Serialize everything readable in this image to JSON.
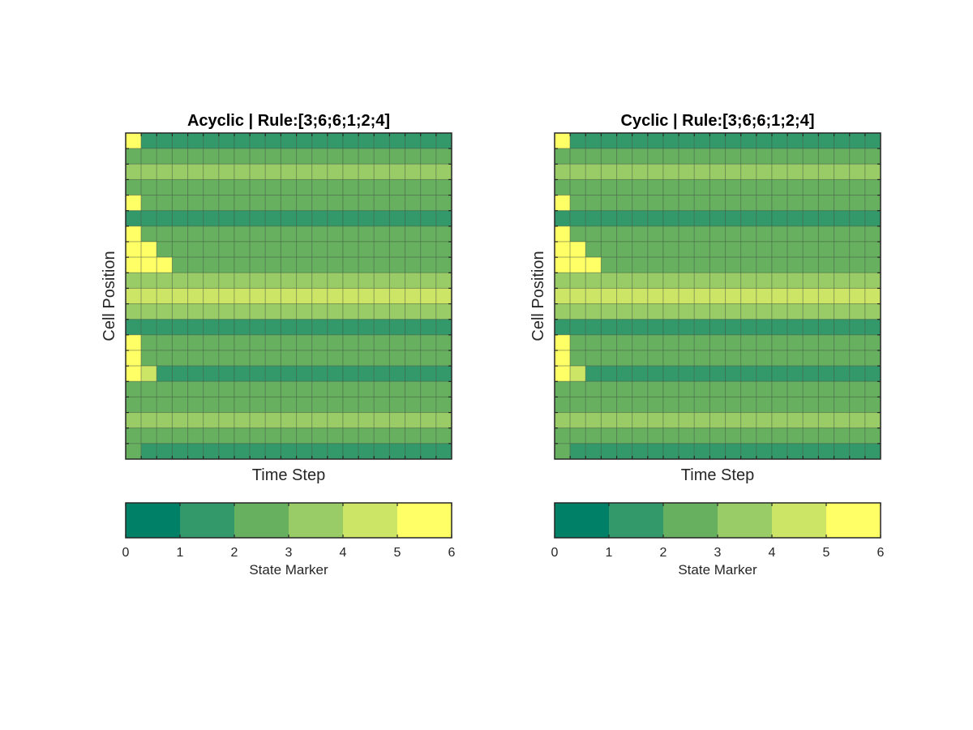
{
  "colors": {
    "palette": [
      "#008066",
      "#33996a",
      "#66b060",
      "#99cc66",
      "#cce566",
      "#ffff66"
    ],
    "grid": "#3a4a3a",
    "frame": "#262626",
    "background": "#ffffff"
  },
  "chart_data": [
    {
      "type": "heatmap",
      "title": "Acyclic | Rule:[3;6;6;1;2;4]",
      "xlabel": "Time Step",
      "ylabel": "Cell Position",
      "colorbar": {
        "label": "State Marker",
        "ticks": [
          "0",
          "1",
          "2",
          "3",
          "4",
          "5",
          "6"
        ],
        "range": [
          0,
          6
        ]
      },
      "grid": true,
      "n_rows": 21,
      "n_cols": 21,
      "rows": [
        [
          5,
          1
        ],
        [
          2
        ],
        [
          3
        ],
        [
          2
        ],
        [
          5,
          2
        ],
        [
          1
        ],
        [
          5,
          2
        ],
        [
          5,
          5,
          2
        ],
        [
          5,
          5,
          5,
          2
        ],
        [
          3
        ],
        [
          4
        ],
        [
          3
        ],
        [
          1
        ],
        [
          5,
          2
        ],
        [
          5,
          2
        ],
        [
          5,
          4,
          1
        ],
        [
          2
        ],
        [
          2
        ],
        [
          3
        ],
        [
          2
        ],
        [
          2,
          1
        ]
      ]
    },
    {
      "type": "heatmap",
      "title": "Cyclic | Rule:[3;6;6;1;2;4]",
      "xlabel": "Time Step",
      "ylabel": "Cell Position",
      "colorbar": {
        "label": "State Marker",
        "ticks": [
          "0",
          "1",
          "2",
          "3",
          "4",
          "5",
          "6"
        ],
        "range": [
          0,
          6
        ]
      },
      "grid": true,
      "n_rows": 21,
      "n_cols": 21,
      "rows": [
        [
          5,
          1
        ],
        [
          2
        ],
        [
          3
        ],
        [
          2
        ],
        [
          5,
          2
        ],
        [
          1
        ],
        [
          5,
          2
        ],
        [
          5,
          5,
          2
        ],
        [
          5,
          5,
          5,
          2
        ],
        [
          3
        ],
        [
          4
        ],
        [
          3
        ],
        [
          1
        ],
        [
          5,
          2
        ],
        [
          5,
          2
        ],
        [
          5,
          4,
          1
        ],
        [
          2
        ],
        [
          2
        ],
        [
          3
        ],
        [
          2
        ],
        [
          2,
          1
        ]
      ]
    }
  ]
}
